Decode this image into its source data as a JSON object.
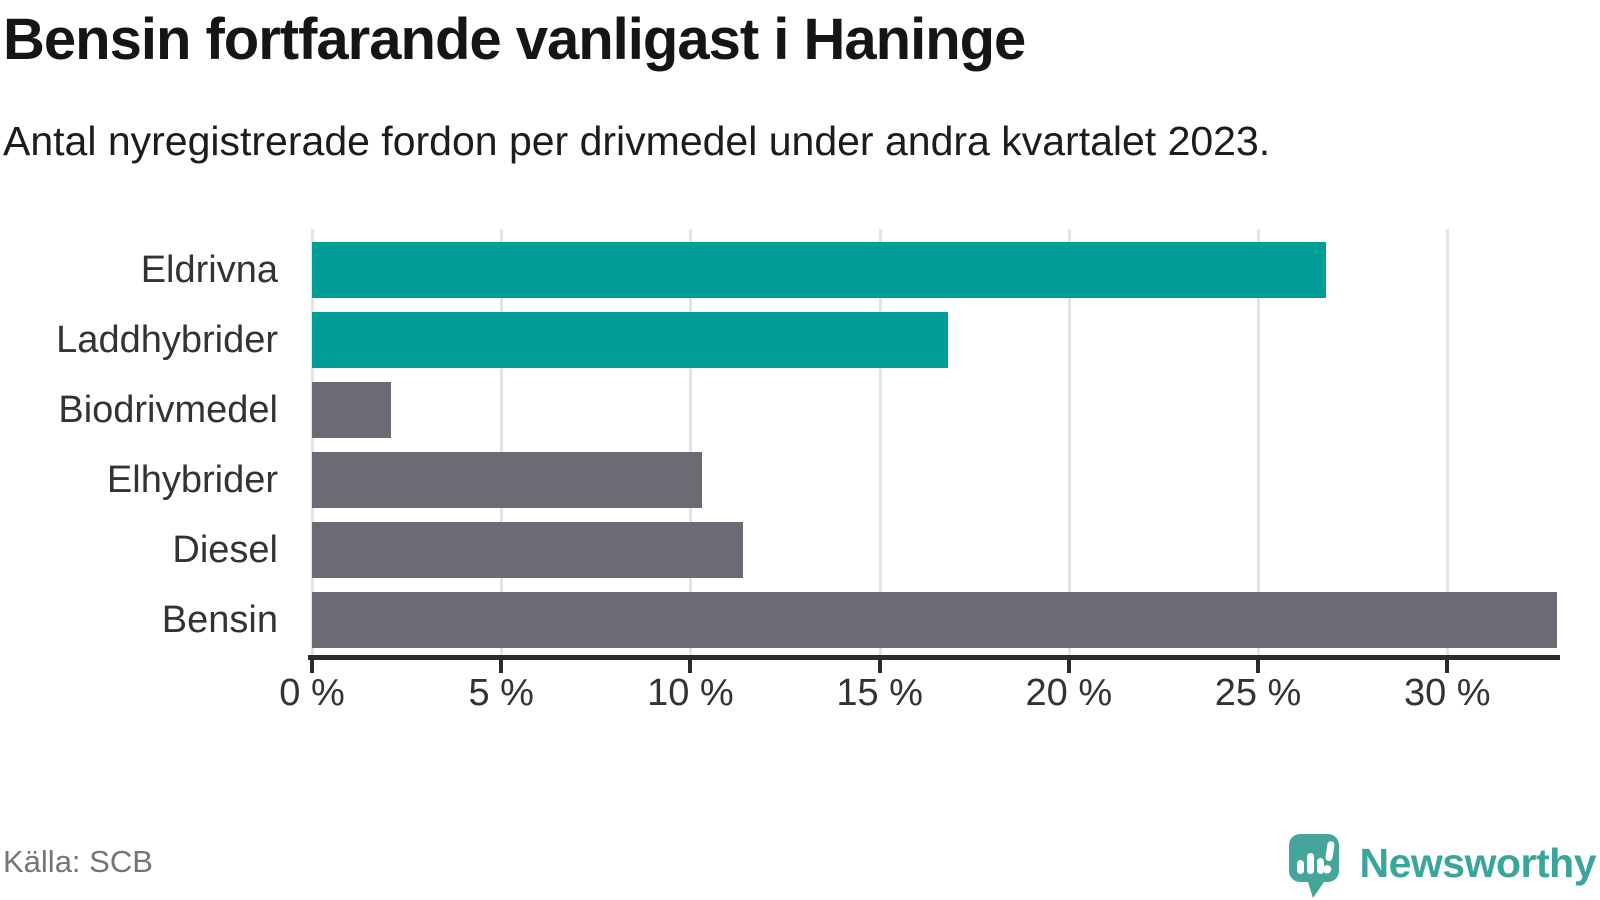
{
  "chart_data": {
    "type": "bar",
    "orientation": "horizontal",
    "title": "Bensin fortfarande vanligast i Haninge",
    "subtitle": "Antal nyregistrerade fordon per drivmedel under andra kvartalet 2023.",
    "categories": [
      "Eldrivna",
      "Laddhybrider",
      "Biodrivmedel",
      "Elhybrider",
      "Diesel",
      "Bensin"
    ],
    "values": [
      26.8,
      16.8,
      2.1,
      10.3,
      11.4,
      32.9
    ],
    "unit": "%",
    "bar_colors": [
      "#009e96",
      "#009e96",
      "#6c6a72",
      "#6c6a72",
      "#6c6a72",
      "#6c6a72"
    ],
    "highlight_color": "#009e96",
    "default_color": "#6c6a72",
    "xlim": [
      0,
      32.9
    ],
    "x_tick_values": [
      0,
      5,
      10,
      15,
      20,
      25,
      30
    ],
    "x_tick_labels": [
      "0 %",
      "5 %",
      "10 %",
      "15 %",
      "20 %",
      "25 %",
      "30 %"
    ],
    "grid": "vertical",
    "gridline_color": "#e4e4e4",
    "axis_color": "#2b2b2b",
    "legend": "none",
    "value_labels": "none"
  },
  "footer": {
    "source": "Källa: SCB",
    "brand": "Newsworthy",
    "brand_color": "#3aa69b"
  },
  "icons": {
    "logo": "newsworthy-speech-bubble-bar-chart-icon"
  }
}
